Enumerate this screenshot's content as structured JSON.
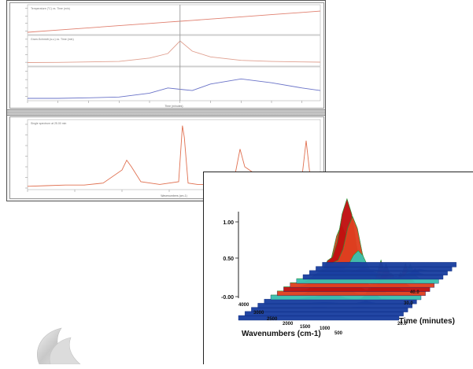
{
  "chart_data": [
    {
      "type": "line",
      "panel": "top-strip",
      "traces": [
        {
          "name": "Temperature (°C) vs. Time (min)",
          "color": "#e08070"
        },
        {
          "name": "Gram-Schmidt (a.u.) vs. Time (min)",
          "color": "#e0a090"
        },
        {
          "name": "",
          "color": "#6a73c8"
        }
      ],
      "x": [
        0,
        5,
        10,
        15,
        20,
        23,
        25,
        27,
        30,
        35,
        40,
        45,
        48
      ],
      "series": [
        {
          "values": [
            0.0,
            0.1,
            0.2,
            0.3,
            0.4,
            0.46,
            0.5,
            0.54,
            0.6,
            0.7,
            0.8,
            0.9,
            0.96
          ]
        },
        {
          "values": [
            0.05,
            0.06,
            0.08,
            0.1,
            0.25,
            0.45,
            1.0,
            0.55,
            0.3,
            0.15,
            0.1,
            0.08,
            0.07
          ]
        },
        {
          "values": [
            0.0,
            0.0,
            0.02,
            0.05,
            0.2,
            0.4,
            0.35,
            0.3,
            0.55,
            0.75,
            0.6,
            0.4,
            0.3
          ]
        }
      ],
      "cursor_x": 25,
      "xlabel": "Time (minutes)"
    },
    {
      "type": "line",
      "panel": "spectrum",
      "trace_label": "Single spectrum at 25.00 min",
      "x": [
        4000,
        3800,
        3600,
        3400,
        3200,
        3000,
        2950,
        2900,
        2800,
        2600,
        2400,
        2360,
        2340,
        2300,
        2200,
        2000,
        1800,
        1750,
        1700,
        1600,
        1500,
        1400,
        1300,
        1200,
        1100,
        1050,
        1000,
        900
      ],
      "y": [
        0.05,
        0.06,
        0.07,
        0.07,
        0.1,
        0.3,
        0.45,
        0.35,
        0.12,
        0.08,
        0.12,
        0.98,
        0.8,
        0.1,
        0.08,
        0.08,
        0.25,
        0.62,
        0.35,
        0.25,
        0.2,
        0.15,
        0.12,
        0.1,
        0.12,
        0.75,
        0.1,
        0.08
      ],
      "xlabel": "Wavenumbers (cm-1)"
    },
    {
      "type": "surface3d",
      "yticks": [
        "1.00",
        "0.50",
        "-0.00"
      ],
      "xticks": [
        "4000",
        "3000",
        "2500",
        "2000",
        "1500",
        "1000",
        "500"
      ],
      "zticks": [
        "40.0",
        "30.0",
        "20.0"
      ],
      "xlabel": "Wavenumbers (cm-1)",
      "zlabel": "Time (minutes)",
      "colormap": [
        "#1a3fa0",
        "#2e7fd0",
        "#3cc0b0",
        "#40c040",
        "#d0d020",
        "#e04020",
        "#c01010"
      ]
    }
  ]
}
